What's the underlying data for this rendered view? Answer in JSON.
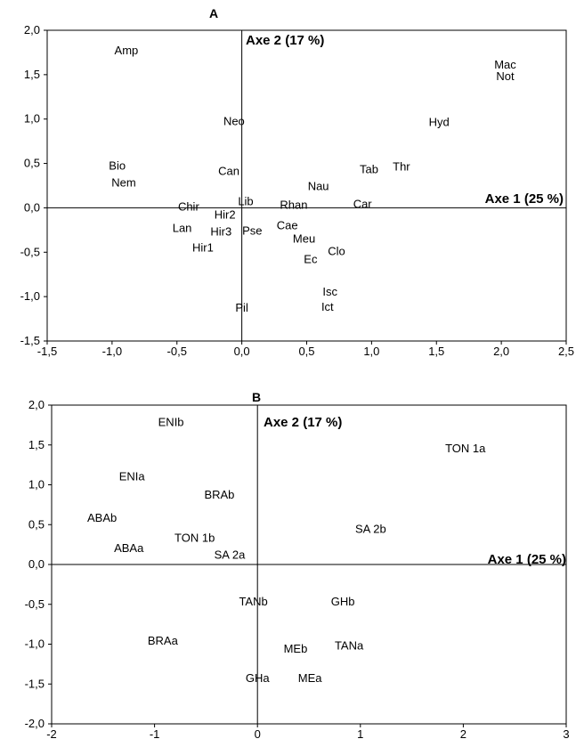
{
  "chart_data": [
    {
      "type": "scatter",
      "panel": "A",
      "xlabel": "Axe 1 (25 %)",
      "ylabel": "Axe 2 (17 %)",
      "xlim": [
        -1.5,
        2.5
      ],
      "ylim": [
        -1.5,
        2.0
      ],
      "xticks": [
        -1.5,
        -1.0,
        -0.5,
        0.0,
        0.5,
        1.0,
        1.5,
        2.0,
        2.5
      ],
      "yticks": [
        -1.5,
        -1.0,
        -0.5,
        0.0,
        0.5,
        1.0,
        1.5,
        2.0
      ],
      "xtick_labels": [
        "-1,5",
        "-1,0",
        "-0,5",
        "0,0",
        "0,5",
        "1,0",
        "1,5",
        "2,0",
        "2,5"
      ],
      "ytick_labels": [
        "-1,5",
        "-1,0",
        "-0,5",
        "0,0",
        "0,5",
        "1,0",
        "1,5",
        "2,0"
      ],
      "grid": false,
      "points": [
        {
          "label": "Amp",
          "x": -0.89,
          "y": 1.77
        },
        {
          "label": "Mac",
          "x": 2.03,
          "y": 1.61
        },
        {
          "label": "Not",
          "x": 2.03,
          "y": 1.48
        },
        {
          "label": "Neo",
          "x": -0.06,
          "y": 0.97
        },
        {
          "label": "Hyd",
          "x": 1.52,
          "y": 0.96
        },
        {
          "label": "Bio",
          "x": -0.96,
          "y": 0.47
        },
        {
          "label": "Nem",
          "x": -0.91,
          "y": 0.28
        },
        {
          "label": "Can",
          "x": -0.1,
          "y": 0.41
        },
        {
          "label": "Tab",
          "x": 0.98,
          "y": 0.43
        },
        {
          "label": "Thr",
          "x": 1.23,
          "y": 0.46
        },
        {
          "label": "Nau",
          "x": 0.59,
          "y": 0.24
        },
        {
          "label": "Lib",
          "x": 0.03,
          "y": 0.07
        },
        {
          "label": "Chir",
          "x": -0.41,
          "y": 0.01
        },
        {
          "label": "Rhan",
          "x": 0.4,
          "y": 0.03
        },
        {
          "label": "Car",
          "x": 0.93,
          "y": 0.04
        },
        {
          "label": "Hir2",
          "x": -0.13,
          "y": -0.08
        },
        {
          "label": "Lan",
          "x": -0.46,
          "y": -0.23
        },
        {
          "label": "Cae",
          "x": 0.35,
          "y": -0.2
        },
        {
          "label": "Hir3",
          "x": -0.16,
          "y": -0.27
        },
        {
          "label": "Pse",
          "x": 0.08,
          "y": -0.26
        },
        {
          "label": "Meu",
          "x": 0.48,
          "y": -0.35
        },
        {
          "label": "Clo",
          "x": 0.73,
          "y": -0.49
        },
        {
          "label": "Hir1",
          "x": -0.3,
          "y": -0.45
        },
        {
          "label": "Ec",
          "x": 0.53,
          "y": -0.58
        },
        {
          "label": "Isc",
          "x": 0.68,
          "y": -0.95
        },
        {
          "label": "Pil",
          "x": 0.0,
          "y": -1.13
        },
        {
          "label": "Ict",
          "x": 0.66,
          "y": -1.12
        }
      ]
    },
    {
      "type": "scatter",
      "panel": "B",
      "xlabel": "Axe 1 (25 %)",
      "ylabel": "Axe 2 (17 %)",
      "xlim": [
        -2,
        3
      ],
      "ylim": [
        -2.0,
        2.0
      ],
      "xticks": [
        -2,
        -1,
        0,
        1,
        2,
        3
      ],
      "yticks": [
        -2.0,
        -1.5,
        -1.0,
        -0.5,
        0.0,
        0.5,
        1.0,
        1.5,
        2.0
      ],
      "xtick_labels": [
        "-2",
        "-1",
        "0",
        "1",
        "2",
        "3"
      ],
      "ytick_labels": [
        "-2,0",
        "-1,5",
        "-1,0",
        "-0,5",
        "0,0",
        "0,5",
        "1,0",
        "1,5",
        "2,0"
      ],
      "grid": false,
      "points": [
        {
          "label": "ENIb",
          "x": -0.84,
          "y": 1.78
        },
        {
          "label": "TON 1a",
          "x": 2.02,
          "y": 1.45
        },
        {
          "label": "ENIa",
          "x": -1.22,
          "y": 1.1
        },
        {
          "label": "BRAb",
          "x": -0.37,
          "y": 0.87
        },
        {
          "label": "ABAb",
          "x": -1.51,
          "y": 0.58
        },
        {
          "label": "SA 2b",
          "x": 1.1,
          "y": 0.44
        },
        {
          "label": "TON 1b",
          "x": -0.61,
          "y": 0.33
        },
        {
          "label": "ABAa",
          "x": -1.25,
          "y": 0.2
        },
        {
          "label": "SA 2a",
          "x": -0.27,
          "y": 0.12
        },
        {
          "label": "TANb",
          "x": -0.04,
          "y": -0.47
        },
        {
          "label": "GHb",
          "x": 0.83,
          "y": -0.47
        },
        {
          "label": "BRAa",
          "x": -0.92,
          "y": -0.96
        },
        {
          "label": "MEb",
          "x": 0.37,
          "y": -1.06
        },
        {
          "label": "TANa",
          "x": 0.89,
          "y": -1.02
        },
        {
          "label": "GHa",
          "x": 0.0,
          "y": -1.43
        },
        {
          "label": "MEa",
          "x": 0.51,
          "y": -1.43
        }
      ]
    }
  ]
}
